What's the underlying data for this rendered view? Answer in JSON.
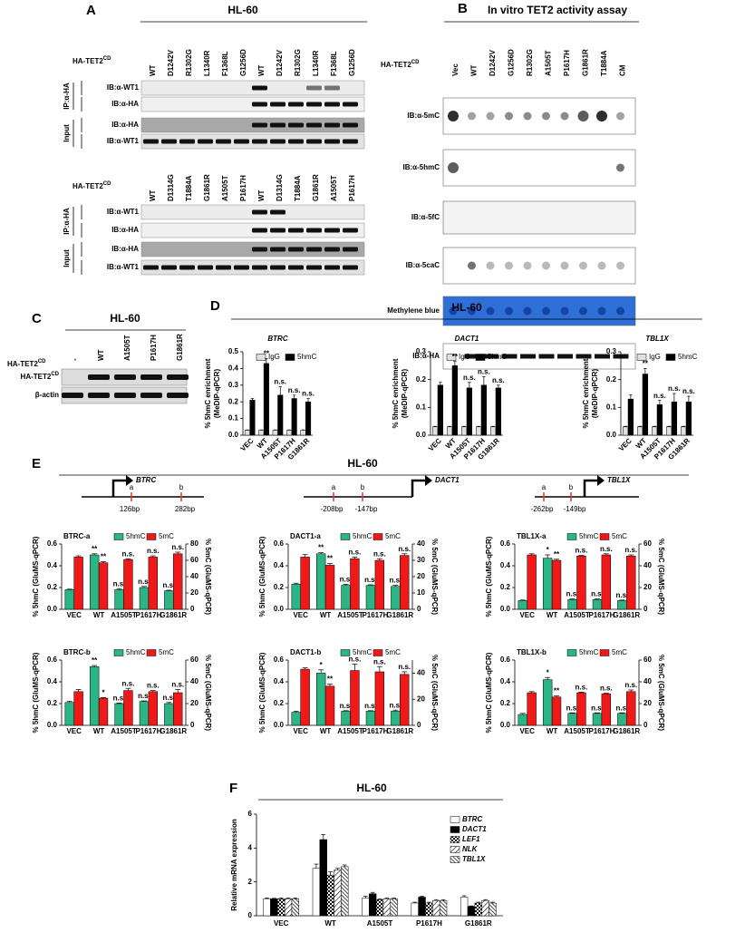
{
  "panels": {
    "A": {
      "label": "A",
      "title": "HL-60",
      "construct": "HA-TET2",
      "construct_sup": "CD",
      "blocks": [
        {
          "lanes": [
            "WT",
            "D1242V",
            "R1302G",
            "L1340R",
            "F1368L",
            "G1256D",
            "WT",
            "D1242V",
            "R1302G",
            "L1340R",
            "F1368L",
            "G1256D"
          ],
          "groups": [
            {
              "label": "IP:α-HA",
              "rows": [
                "IB:α-WT1",
                "IB:α-HA"
              ]
            },
            {
              "label": "Input",
              "rows": [
                "IB:α-HA",
                "IB:α-WT1"
              ]
            }
          ]
        },
        {
          "lanes": [
            "WT",
            "D1314G",
            "T1884A",
            "G1861R",
            "A1505T",
            "P1617H",
            "WT",
            "D1314G",
            "T1884A",
            "G1861R",
            "A1505T",
            "P1617H"
          ],
          "groups": [
            {
              "label": "IP:α-HA",
              "rows": [
                "IB:α-WT1",
                "IB:α-HA"
              ]
            },
            {
              "label": "Input",
              "rows": [
                "IB:α-HA",
                "IB:α-WT1"
              ]
            }
          ]
        }
      ]
    },
    "B": {
      "label": "B",
      "title": "In vitro TET2 activity assay",
      "construct": "HA-TET2",
      "construct_sup": "CD",
      "lanes": [
        "Vec",
        "WT",
        "D1242V",
        "G1256D",
        "R1302G",
        "A1505T",
        "P1617H",
        "G1861R",
        "T1884A",
        "CM"
      ],
      "rows": [
        "IB:α-5mC",
        "IB:α-5hmC",
        "IB:α-5fC",
        "IB:α-5caC",
        "Methylene blue",
        "IB:α-HA"
      ]
    },
    "C": {
      "label": "C",
      "title": "HL-60",
      "construct": "HA-TET2",
      "construct_sup": "CD",
      "lanes": [
        "-",
        "WT",
        "A1505T",
        "P1617H",
        "G1861R"
      ],
      "rows": [
        {
          "label": "HA-TET2",
          "sup": "CD"
        },
        {
          "label": "β-actin"
        }
      ]
    },
    "D": {
      "label": "D",
      "title": "HL-60"
    },
    "E": {
      "label": "E",
      "title": "HL-60",
      "genes": [
        {
          "name": "BTRC",
          "sites": [
            "a",
            "b"
          ],
          "positions": [
            "126bp",
            "282bp"
          ]
        },
        {
          "name": "DACT1",
          "sites": [
            "a",
            "b"
          ],
          "positions": [
            "-208bp",
            "-147bp"
          ]
        },
        {
          "name": "TBL1X",
          "sites": [
            "a",
            "b"
          ],
          "positions": [
            "-262bp",
            "-149bp"
          ]
        }
      ]
    },
    "F": {
      "label": "F",
      "title": "HL-60"
    }
  },
  "chart_data": [
    {
      "type": "bar",
      "title": "BTRC",
      "ylabel": [
        "% 5hmC enrichment",
        "(MeDIP-qPCR)"
      ],
      "categories": [
        "VEC",
        "WT",
        "A1505T",
        "P1617H",
        "G1861R"
      ],
      "ylim": [
        0,
        0.5
      ],
      "yticks": [
        {
          "value": 0,
          "label": "0.0"
        },
        0.1,
        0.2,
        0.3,
        0.4,
        0.5
      ],
      "series": [
        {
          "name": "IgG",
          "color": "#e0e0e0",
          "values": [
            0.03,
            0.03,
            0.03,
            0.03,
            0.03
          ],
          "errors": [
            0.002,
            0.002,
            0.002,
            0.002,
            0.002
          ]
        },
        {
          "name": "5hmC",
          "color": "#000000",
          "values": [
            0.21,
            0.43,
            0.24,
            0.22,
            0.2
          ],
          "errors": [
            0.01,
            0.03,
            0.05,
            0.02,
            0.02
          ],
          "annotations": [
            null,
            "**",
            "n.s.",
            "n.s.",
            "n.s."
          ]
        }
      ]
    },
    {
      "type": "bar",
      "title": "DACT1",
      "ylabel": [
        "% 5hmC enrichment",
        "(MeDIP-qPCR)"
      ],
      "categories": [
        "VEC",
        "WT",
        "A1505T",
        "P1617H",
        "G1861R"
      ],
      "ylim": [
        0,
        0.3
      ],
      "yticks": [
        {
          "value": 0,
          "label": "0.0"
        },
        0.1,
        0.2,
        0.3
      ],
      "series": [
        {
          "name": "IgG",
          "color": "#e0e0e0",
          "values": [
            0.03,
            0.03,
            0.03,
            0.03,
            0.03
          ],
          "errors": [
            0.002,
            0.002,
            0.002,
            0.002,
            0.002
          ]
        },
        {
          "name": "5hmC",
          "color": "#000000",
          "values": [
            0.18,
            0.25,
            0.17,
            0.18,
            0.17
          ],
          "errors": [
            0.01,
            0.015,
            0.02,
            0.03,
            0.01
          ],
          "annotations": [
            null,
            "**",
            "n.s.",
            "n.s.",
            "n.s."
          ]
        }
      ]
    },
    {
      "type": "bar",
      "title": "TBL1X",
      "ylabel": [
        "% 5hmC enrichment",
        "(MeDIP-qPCR)"
      ],
      "categories": [
        "VEC",
        "WT",
        "A1505T",
        "P1617H",
        "G1861R"
      ],
      "ylim": [
        0,
        0.3
      ],
      "yticks": [
        {
          "value": 0,
          "label": "0.0"
        },
        0.1,
        0.2,
        0.3
      ],
      "series": [
        {
          "name": "IgG",
          "color": "#e0e0e0",
          "values": [
            0.03,
            0.03,
            0.03,
            0.03,
            0.03
          ],
          "errors": [
            0.002,
            0.002,
            0.002,
            0.002,
            0.002
          ]
        },
        {
          "name": "5hmC",
          "color": "#000000",
          "values": [
            0.13,
            0.22,
            0.11,
            0.12,
            0.12
          ],
          "errors": [
            0.015,
            0.02,
            0.015,
            0.03,
            0.02
          ],
          "annotations": [
            null,
            "**",
            "n.s.",
            "n.s.",
            "n.s."
          ]
        }
      ]
    },
    {
      "type": "bar",
      "title": "BTRC-a",
      "ylabel": [
        "% 5hmC (GluMS-qPCR)"
      ],
      "y2label": "% 5mC (GluMS-qPCR)",
      "categories": [
        "VEC",
        "WT",
        "A1505T",
        "P1617H",
        "G1861R"
      ],
      "ylim": [
        0,
        0.6
      ],
      "yticks": [
        {
          "value": 0,
          "label": "0.0"
        },
        0.2,
        0.4,
        0.6
      ],
      "y2lim": [
        0,
        80
      ],
      "y2ticks": [
        0,
        20,
        40,
        60,
        80
      ],
      "series": [
        {
          "name": "5hmC",
          "color": "#2bb484",
          "values": [
            0.18,
            0.5,
            0.18,
            0.2,
            0.17
          ],
          "errors": [
            0.005,
            0.01,
            0.01,
            0.01,
            0.005
          ],
          "annotations": [
            null,
            "**",
            "n.s.",
            "n.s.",
            "n.s."
          ]
        },
        {
          "name": "5mC",
          "color": "#f01818",
          "axis": "y2",
          "values": [
            64,
            57,
            61,
            64,
            68
          ],
          "errors": [
            1.5,
            1.5,
            1,
            1.5,
            2
          ],
          "annotations": [
            null,
            "**",
            "n.s.",
            "n.s.",
            "n.s."
          ]
        }
      ]
    },
    {
      "type": "bar",
      "title": "BTRC-b",
      "ylabel": [
        "% 5hmC (GluMS-qPCR)"
      ],
      "y2label": "% 5mC (GluMS-qPCR)",
      "categories": [
        "VEC",
        "WT",
        "A1505T",
        "P1617H",
        "G1861R"
      ],
      "ylim": [
        0,
        0.6
      ],
      "yticks": [
        {
          "value": 0,
          "label": "0.0"
        },
        0.2,
        0.4,
        0.6
      ],
      "y2lim": [
        0,
        60
      ],
      "y2ticks": [
        0,
        20,
        40,
        60
      ],
      "series": [
        {
          "name": "5hmC",
          "color": "#2bb484",
          "values": [
            0.21,
            0.54,
            0.2,
            0.22,
            0.2
          ],
          "errors": [
            0.01,
            0.01,
            0.005,
            0.005,
            0.01
          ],
          "annotations": [
            null,
            "**",
            "n.s.",
            "n.s.",
            "n.s."
          ]
        },
        {
          "name": "5mC",
          "color": "#f01818",
          "axis": "y2",
          "values": [
            31,
            25,
            32,
            31,
            30
          ],
          "errors": [
            2,
            0.5,
            2,
            1,
            3
          ],
          "annotations": [
            null,
            "*",
            "n.s.",
            "n.s.",
            "n.s."
          ]
        }
      ]
    },
    {
      "type": "bar",
      "title": "DACT1-a",
      "ylabel": [
        "% 5hmC (GluMS-qPCR)"
      ],
      "y2label": "% 5mC (GluMS-qPCR)",
      "categories": [
        "VEC",
        "WT",
        "A1505T",
        "P1617H",
        "G1861R"
      ],
      "ylim": [
        0,
        0.6
      ],
      "yticks": [
        {
          "value": 0,
          "label": "0.0"
        },
        0.2,
        0.4,
        0.6
      ],
      "y2lim": [
        0,
        40
      ],
      "y2ticks": [
        0,
        10,
        20,
        30,
        40
      ],
      "series": [
        {
          "name": "5hmC",
          "color": "#2bb484",
          "values": [
            0.23,
            0.51,
            0.22,
            0.22,
            0.21
          ],
          "errors": [
            0.01,
            0.01,
            0.01,
            0.005,
            0.01
          ],
          "annotations": [
            null,
            "**",
            "n.s.",
            "n.s.",
            "n.s."
          ]
        },
        {
          "name": "5mC",
          "color": "#f01818",
          "axis": "y2",
          "values": [
            32,
            27,
            31,
            30,
            33
          ],
          "errors": [
            1.5,
            1,
            1,
            1,
            1
          ],
          "annotations": [
            null,
            "**",
            "n.s.",
            "n.s.",
            "n.s."
          ]
        }
      ]
    },
    {
      "type": "bar",
      "title": "DACT1-b",
      "ylabel": [
        "% 5hmC (GluMS-qPCR)"
      ],
      "y2label": "% 5mC (GluMS-qPCR)",
      "categories": [
        "VEC",
        "WT",
        "A1505T",
        "P1617H",
        "G1861R"
      ],
      "ylim": [
        0,
        0.6
      ],
      "yticks": [
        {
          "value": 0,
          "label": "0.0"
        },
        0.2,
        0.4,
        0.6
      ],
      "y2lim": [
        0,
        50
      ],
      "y2ticks": [
        0,
        20,
        40
      ],
      "series": [
        {
          "name": "5hmC",
          "color": "#2bb484",
          "values": [
            0.12,
            0.48,
            0.13,
            0.13,
            0.13
          ],
          "errors": [
            0.01,
            0.03,
            0.005,
            0.005,
            0.01
          ],
          "annotations": [
            null,
            "*",
            "n.s.",
            "n.s.",
            "n.s."
          ]
        },
        {
          "name": "5mC",
          "color": "#f01818",
          "axis": "y2",
          "values": [
            43,
            30,
            42,
            41,
            39
          ],
          "errors": [
            1,
            1.5,
            5,
            4,
            2
          ],
          "annotations": [
            null,
            "**",
            "n.s.",
            "n.s.",
            "n.s."
          ]
        }
      ]
    },
    {
      "type": "bar",
      "title": "TBL1X-a",
      "ylabel": [
        "% 5hmC (GluMS-qPCR)"
      ],
      "y2label": "% 5mC (GluMS-qPCR)",
      "categories": [
        "VEC",
        "WT",
        "A1505T",
        "P1617H",
        "G1861R"
      ],
      "ylim": [
        0,
        0.6
      ],
      "yticks": [
        {
          "value": 0,
          "label": "0.0"
        },
        0.2,
        0.4,
        0.6
      ],
      "y2lim": [
        0,
        60
      ],
      "y2ticks": [
        0,
        20,
        40,
        60
      ],
      "series": [
        {
          "name": "5hmC",
          "color": "#2bb484",
          "values": [
            0.08,
            0.47,
            0.09,
            0.09,
            0.08
          ],
          "errors": [
            0.005,
            0.03,
            0.005,
            0.005,
            0.005
          ],
          "annotations": [
            null,
            "*",
            "n.s.",
            "n.s.",
            "n.s."
          ]
        },
        {
          "name": "5mC",
          "color": "#f01818",
          "axis": "y2",
          "values": [
            50,
            45,
            49,
            50,
            49
          ],
          "errors": [
            1,
            1,
            0.5,
            1,
            1
          ],
          "annotations": [
            null,
            "**",
            "n.s.",
            "n.s.",
            "n.s."
          ]
        }
      ]
    },
    {
      "type": "bar",
      "title": "TBL1X-b",
      "ylabel": [
        "% 5hmC (GluMS-qPCR)"
      ],
      "y2label": "% 5mC (GluMS-qPCR)",
      "categories": [
        "VEC",
        "WT",
        "A1505T",
        "P1617H",
        "G1861R"
      ],
      "ylim": [
        0,
        0.6
      ],
      "yticks": [
        {
          "value": 0,
          "label": "0.0"
        },
        0.2,
        0.4,
        0.6
      ],
      "y2lim": [
        0,
        60
      ],
      "y2ticks": [
        0,
        20,
        40,
        60
      ],
      "series": [
        {
          "name": "5hmC",
          "color": "#2bb484",
          "values": [
            0.1,
            0.42,
            0.11,
            0.11,
            0.11
          ],
          "errors": [
            0.01,
            0.02,
            0.005,
            0.005,
            0.005
          ],
          "annotations": [
            null,
            "*",
            "n.s.",
            "n.s.",
            "n.s."
          ]
        },
        {
          "name": "5mC",
          "color": "#f01818",
          "axis": "y2",
          "values": [
            30,
            26,
            30,
            29,
            31
          ],
          "errors": [
            1,
            1,
            0.5,
            0.5,
            1.5
          ],
          "annotations": [
            null,
            "**",
            "n.s.",
            "n.s.",
            "n.s."
          ]
        }
      ]
    },
    {
      "type": "bar",
      "ylabel": [
        "Relative mRNA expression"
      ],
      "categories": [
        "VEC",
        "WT",
        "A1505T",
        "P1617H",
        "G1861R"
      ],
      "ylim": [
        0,
        6
      ],
      "yticks": [
        0,
        2,
        4,
        6
      ],
      "series": [
        {
          "name": "BTRC",
          "color": "#ffffff",
          "values": [
            1.0,
            2.8,
            1.05,
            0.75,
            1.1
          ],
          "errors": [
            0.05,
            0.25,
            0.1,
            0.05,
            0.08
          ]
        },
        {
          "name": "DACT1",
          "color": "#000000",
          "values": [
            1.0,
            4.5,
            1.3,
            1.1,
            0.55
          ],
          "errors": [
            0.03,
            0.3,
            0.08,
            0.05,
            0.03
          ]
        },
        {
          "name": "LEF1",
          "color": "#000000",
          "pattern": "checker",
          "values": [
            1.0,
            2.4,
            0.95,
            0.75,
            0.75
          ],
          "errors": [
            0.05,
            0.2,
            0.05,
            0.05,
            0.05
          ]
        },
        {
          "name": "NLK",
          "color": "#000000",
          "pattern": "hatch",
          "values": [
            1.0,
            2.7,
            1.0,
            0.9,
            0.9
          ],
          "errors": [
            0.05,
            0.1,
            0.05,
            0.05,
            0.05
          ]
        },
        {
          "name": "TBL1X",
          "color": "#000000",
          "pattern": "hatch-dense",
          "values": [
            1.0,
            2.9,
            1.0,
            0.9,
            0.75
          ],
          "errors": [
            0.05,
            0.1,
            0.05,
            0.05,
            0.05
          ]
        }
      ]
    }
  ]
}
